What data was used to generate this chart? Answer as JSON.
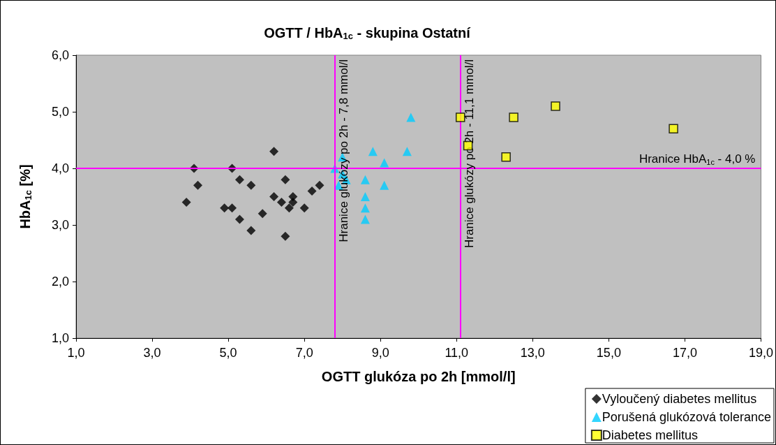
{
  "chart_data": {
    "type": "scatter",
    "title": "OGTT / HbA$_{1c}$ - skupina Ostatní",
    "xlabel": "OGTT glukóza po 2h [mmol/l]",
    "ylabel": "HbA$_{1c}$ [%]",
    "xlim": [
      1,
      19
    ],
    "xticks": [
      {
        "value": 1,
        "label": "1,0"
      },
      {
        "value": 3,
        "label": "3,0"
      },
      {
        "value": 5,
        "label": "5,0"
      },
      {
        "value": 7,
        "label": "7,0"
      },
      {
        "value": 9,
        "label": "9,0"
      },
      {
        "value": 11,
        "label": "11,0"
      },
      {
        "value": 13,
        "label": "13,0"
      },
      {
        "value": 15,
        "label": "15,0"
      },
      {
        "value": 17,
        "label": "17,0"
      },
      {
        "value": 19,
        "label": "19,0"
      }
    ],
    "ylim": [
      1,
      6
    ],
    "yticks": [
      {
        "value": 1,
        "label": "1,0"
      },
      {
        "value": 2,
        "label": "2,0"
      },
      {
        "value": 3,
        "label": "3,0"
      },
      {
        "value": 4,
        "label": "4,0"
      },
      {
        "value": 5,
        "label": "5,0"
      },
      {
        "value": 6,
        "label": "6,0"
      }
    ],
    "grid": false,
    "legend": "bottom right",
    "series": [
      {
        "name": "Vyloučený diabetes mellitus",
        "color": "#000000",
        "marker": "diamond",
        "x": [
          6.2,
          4.1,
          5.1,
          5.3,
          5.6,
          4.2,
          6.5,
          3.9,
          4.9,
          5.1,
          5.3,
          5.6,
          5.9,
          6.2,
          6.4,
          6.7,
          6.7,
          6.6,
          7.0,
          7.2,
          7.4,
          6.5
        ],
        "values": [
          4.3,
          4.0,
          4.0,
          3.8,
          3.7,
          3.7,
          3.8,
          3.4,
          3.3,
          3.3,
          3.1,
          2.9,
          3.2,
          3.5,
          3.4,
          3.5,
          3.4,
          3.3,
          3.3,
          3.6,
          3.7,
          2.8
        ]
      },
      {
        "name": "Porušená glukózová tolerance",
        "color": "#00ccff",
        "marker": "triangle",
        "x": [
          9.8,
          8.0,
          8.8,
          9.7,
          9.1,
          7.8,
          8.0,
          8.1,
          7.9,
          8.6,
          9.1,
          8.6,
          8.6,
          8.6
        ],
        "values": [
          4.9,
          4.2,
          4.3,
          4.3,
          4.1,
          4.0,
          3.9,
          3.8,
          3.7,
          3.8,
          3.7,
          3.5,
          3.3,
          3.1
        ]
      },
      {
        "name": "Diabetes mellitus",
        "color": "#ffff00",
        "marker": "square",
        "x": [
          11.1,
          11.3,
          12.5,
          12.3,
          13.6,
          16.7
        ],
        "values": [
          4.9,
          4.4,
          4.9,
          4.2,
          5.1,
          4.7
        ]
      }
    ],
    "ref_lines": [
      {
        "axis": "x",
        "value": 7.8,
        "label": "Hranice glukózy po 2h - 7,8 mmol/l",
        "color": "#ff00ff"
      },
      {
        "axis": "x",
        "value": 11.1,
        "label": "Hranice glukózy po 2h - 11,1 mmol/l",
        "color": "#ff00ff"
      },
      {
        "axis": "y",
        "value": 4.0,
        "label": "Hranice HbA$_{1c}$ - 4,0 %",
        "color": "#ff00ff"
      }
    ]
  }
}
